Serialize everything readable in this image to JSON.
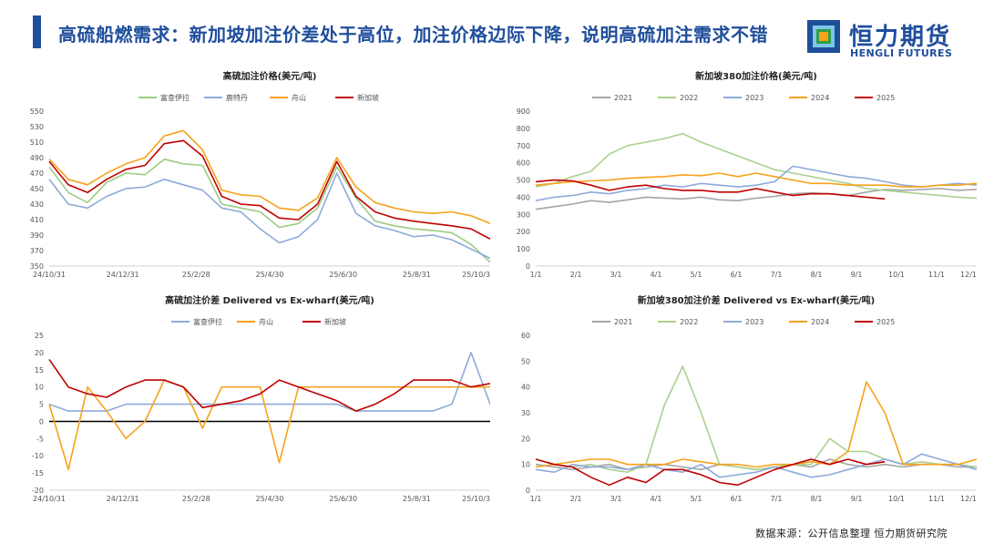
{
  "header": {
    "title": "高硫船燃需求：新加坡加注价差处于高位，加注价格边际下降，说明高硫加注需求不错"
  },
  "logo": {
    "name_cn": "恒力期货",
    "name_en": "HENGLI FUTURES",
    "colors": [
      "#1f4e9c",
      "#f7a21b",
      "#2e9f49",
      "#7cc6e8"
    ]
  },
  "source": "数据来源：公开信息整理  恒力期货研究院",
  "chart_data": [
    {
      "type": "line",
      "title": "高硫加注价格(美元/吨)",
      "ylim": [
        350,
        550
      ],
      "yticks": [
        350,
        370,
        390,
        410,
        430,
        450,
        470,
        490,
        510,
        530,
        550
      ],
      "x_ticks": [
        "24/10/31",
        "24/12/31",
        "25/2/28",
        "25/4/30",
        "25/6/30",
        "25/8/31",
        "25/10/3"
      ],
      "x": [
        "24/10/31",
        "24/11/15",
        "24/11/30",
        "24/12/15",
        "24/12/31",
        "25/1/15",
        "25/1/31",
        "25/2/15",
        "25/2/28",
        "25/3/15",
        "25/3/31",
        "25/4/15",
        "25/4/30",
        "25/5/15",
        "25/5/31",
        "25/6/15",
        "25/6/30",
        "25/7/15",
        "25/7/31",
        "25/8/15",
        "25/8/31",
        "25/9/15",
        "25/9/30",
        "25/10/3"
      ],
      "series": [
        {
          "name": "富查伊拉",
          "color": "#9ccc82",
          "values": [
            478,
            445,
            432,
            458,
            470,
            468,
            488,
            482,
            480,
            430,
            425,
            420,
            400,
            405,
            425,
            478,
            438,
            408,
            402,
            398,
            396,
            393,
            378,
            355
          ]
        },
        {
          "name": "鹿特丹",
          "color": "#8eaadb",
          "values": [
            462,
            430,
            425,
            440,
            450,
            452,
            462,
            455,
            448,
            425,
            420,
            398,
            380,
            388,
            410,
            470,
            418,
            402,
            396,
            388,
            390,
            384,
            372,
            360
          ]
        },
        {
          "name": "舟山",
          "color": "#f7a21b",
          "values": [
            488,
            462,
            455,
            470,
            482,
            490,
            518,
            525,
            500,
            448,
            442,
            440,
            425,
            422,
            438,
            490,
            452,
            432,
            425,
            420,
            418,
            420,
            415,
            405
          ]
        },
        {
          "name": "新加坡",
          "color": "#c00000",
          "values": [
            485,
            455,
            445,
            462,
            475,
            480,
            508,
            512,
            492,
            440,
            430,
            428,
            412,
            410,
            430,
            485,
            440,
            420,
            412,
            408,
            405,
            402,
            398,
            385
          ]
        }
      ]
    },
    {
      "type": "line",
      "title": "新加坡380加注价格(美元/吨)",
      "ylim": [
        0,
        900
      ],
      "yticks": [
        0,
        100,
        200,
        300,
        400,
        500,
        600,
        700,
        800,
        900
      ],
      "x_ticks": [
        "1/1",
        "2/1",
        "3/1",
        "4/1",
        "5/1",
        "6/1",
        "7/1",
        "8/1",
        "9/1",
        "10/1",
        "11/1",
        "12/1"
      ],
      "x": [
        "1/1",
        "1/15",
        "2/1",
        "2/15",
        "3/1",
        "3/15",
        "4/1",
        "4/15",
        "5/1",
        "5/15",
        "6/1",
        "6/15",
        "7/1",
        "7/15",
        "8/1",
        "8/15",
        "9/1",
        "9/15",
        "10/1",
        "10/15",
        "11/1",
        "11/15",
        "12/1",
        "12/15",
        "12/31"
      ],
      "series": [
        {
          "name": "2021",
          "color": "#a5a5a5",
          "values": [
            330,
            345,
            360,
            380,
            370,
            385,
            400,
            395,
            390,
            400,
            385,
            380,
            395,
            405,
            420,
            425,
            420,
            410,
            430,
            445,
            440,
            445,
            450,
            440,
            445
          ]
        },
        {
          "name": "2022",
          "color": "#a9d18e",
          "values": [
            460,
            480,
            520,
            550,
            650,
            700,
            720,
            740,
            770,
            720,
            680,
            640,
            600,
            560,
            540,
            520,
            500,
            480,
            450,
            440,
            430,
            420,
            410,
            400,
            395
          ]
        },
        {
          "name": "2023",
          "color": "#8eaadb",
          "values": [
            380,
            400,
            410,
            430,
            420,
            440,
            450,
            470,
            460,
            480,
            470,
            460,
            470,
            490,
            580,
            560,
            540,
            520,
            510,
            490,
            470,
            460,
            470,
            480,
            470
          ]
        },
        {
          "name": "2024",
          "color": "#f7a21b",
          "values": [
            470,
            480,
            490,
            495,
            500,
            510,
            515,
            520,
            530,
            525,
            540,
            520,
            540,
            520,
            500,
            480,
            480,
            470,
            470,
            470,
            460,
            460,
            470,
            470,
            480
          ]
        },
        {
          "name": "2025",
          "color": "#c00000",
          "values": [
            490,
            500,
            495,
            470,
            440,
            460,
            470,
            450,
            440,
            440,
            430,
            430,
            450,
            430,
            410,
            420,
            420,
            410,
            400,
            390,
            null,
            null,
            null,
            null,
            null
          ]
        }
      ]
    },
    {
      "type": "line",
      "title": "高硫加注价差 Delivered vs Ex-wharf(美元/吨)",
      "ylim": [
        -20,
        25
      ],
      "yticks": [
        -20,
        -15,
        -10,
        -5,
        0,
        5,
        10,
        15,
        20,
        25
      ],
      "x_ticks": [
        "24/10/31",
        "24/12/31",
        "25/2/28",
        "25/4/30",
        "25/6/30",
        "25/8/31",
        "25/10/3"
      ],
      "x": [
        "24/10/31",
        "24/11/15",
        "24/11/30",
        "24/12/15",
        "24/12/31",
        "25/1/15",
        "25/1/31",
        "25/2/15",
        "25/2/28",
        "25/3/15",
        "25/3/31",
        "25/4/15",
        "25/4/30",
        "25/5/15",
        "25/5/31",
        "25/6/15",
        "25/6/30",
        "25/7/15",
        "25/7/31",
        "25/8/15",
        "25/8/31",
        "25/9/15",
        "25/9/30",
        "25/10/3"
      ],
      "zero_line": true,
      "series": [
        {
          "name": "富查伊拉",
          "color": "#8eaadb",
          "values": [
            5,
            3,
            3,
            3,
            5,
            5,
            5,
            5,
            5,
            5,
            5,
            5,
            5,
            5,
            5,
            5,
            3,
            3,
            3,
            3,
            3,
            5,
            20,
            5
          ]
        },
        {
          "name": "舟山",
          "color": "#f7a21b",
          "values": [
            5,
            -14,
            10,
            3,
            -5,
            0,
            12,
            10,
            -2,
            10,
            10,
            10,
            -12,
            10,
            10,
            10,
            10,
            10,
            10,
            10,
            10,
            10,
            10,
            10
          ]
        },
        {
          "name": "新加坡",
          "color": "#c00000",
          "values": [
            18,
            10,
            8,
            7,
            10,
            12,
            12,
            10,
            4,
            5,
            6,
            8,
            12,
            10,
            8,
            6,
            3,
            5,
            8,
            12,
            12,
            12,
            10,
            11
          ]
        }
      ]
    },
    {
      "type": "line",
      "title": "新加坡380加注价差 Delivered vs Ex-wharf(美元/吨)",
      "ylim": [
        0,
        60
      ],
      "yticks": [
        0,
        10,
        20,
        30,
        40,
        50,
        60
      ],
      "x_ticks": [
        "1/1",
        "2/1",
        "3/1",
        "4/1",
        "5/1",
        "6/1",
        "7/1",
        "8/1",
        "9/1",
        "10/1",
        "11/1",
        "12/1"
      ],
      "x": [
        "1/1",
        "1/15",
        "2/1",
        "2/15",
        "3/1",
        "3/15",
        "4/1",
        "4/15",
        "5/1",
        "5/15",
        "6/1",
        "6/15",
        "7/1",
        "7/15",
        "8/1",
        "8/15",
        "9/1",
        "9/15",
        "10/1",
        "10/15",
        "11/1",
        "11/15",
        "12/1",
        "12/15",
        "12/31"
      ],
      "series": [
        {
          "name": "2021",
          "color": "#a5a5a5",
          "values": [
            10,
            9,
            8,
            9,
            10,
            8,
            9,
            10,
            9,
            8,
            10,
            9,
            8,
            9,
            10,
            9,
            12,
            10,
            9,
            10,
            9,
            10,
            10,
            9,
            9
          ]
        },
        {
          "name": "2022",
          "color": "#a9d18e",
          "values": [
            12,
            10,
            9,
            10,
            8,
            7,
            10,
            33,
            48,
            30,
            10,
            9,
            8,
            9,
            10,
            10,
            20,
            15,
            15,
            12,
            10,
            11,
            10,
            10,
            9
          ]
        },
        {
          "name": "2023",
          "color": "#8eaadb",
          "values": [
            8,
            7,
            10,
            9,
            9,
            8,
            10,
            8,
            7,
            10,
            5,
            6,
            7,
            9,
            7,
            5,
            6,
            8,
            10,
            12,
            10,
            14,
            12,
            10,
            8
          ]
        },
        {
          "name": "2024",
          "color": "#f7a21b",
          "values": [
            9,
            10,
            11,
            12,
            12,
            10,
            10,
            10,
            12,
            11,
            10,
            10,
            9,
            10,
            10,
            11,
            10,
            15,
            42,
            30,
            10,
            10,
            10,
            10,
            12
          ]
        },
        {
          "name": "2025",
          "color": "#c00000",
          "values": [
            12,
            10,
            9,
            5,
            2,
            5,
            3,
            8,
            8,
            6,
            3,
            2,
            5,
            8,
            10,
            12,
            10,
            12,
            10,
            11,
            null,
            null,
            null,
            null,
            null
          ]
        }
      ]
    }
  ]
}
